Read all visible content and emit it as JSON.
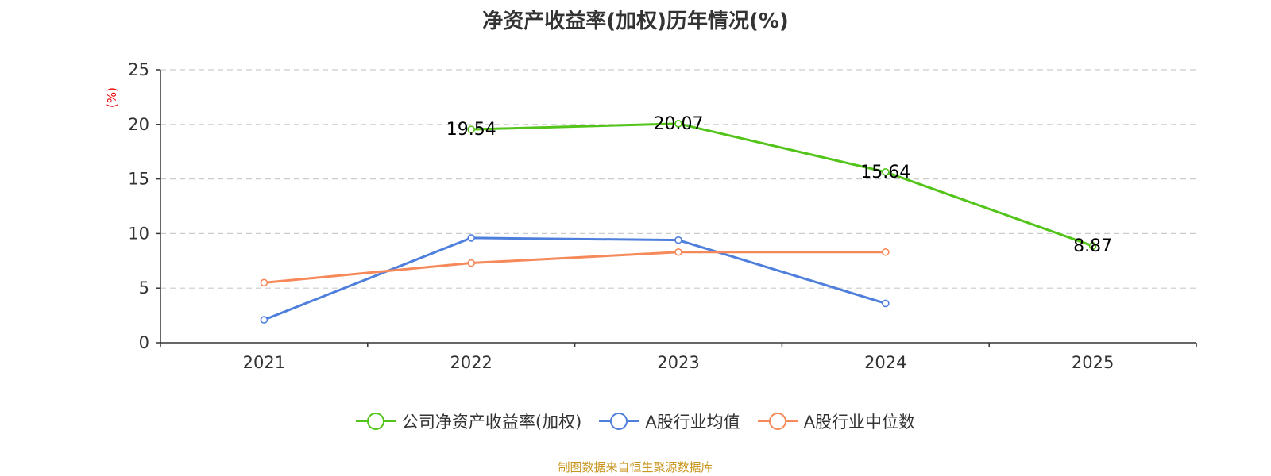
{
  "chart_data": {
    "type": "line",
    "title": "净资产收益率(加权)历年情况(%)",
    "ylabel": "(%)",
    "xlabel": "",
    "categories": [
      "2021",
      "2022",
      "2023",
      "2024",
      "2025"
    ],
    "ylim": [
      0,
      25
    ],
    "yticks": [
      0,
      5,
      10,
      15,
      20,
      25
    ],
    "grid": true,
    "legend_position": "bottom-center",
    "series": [
      {
        "name": "公司净资产收益率(加权)",
        "color": "#52c41a",
        "values": [
          null,
          19.54,
          20.07,
          15.64,
          8.87
        ],
        "labels": [
          "",
          "19.54",
          "20.07",
          "15.64",
          "8.87"
        ],
        "show_labels": true
      },
      {
        "name": "A股行业均值",
        "color": "#4f7fdc",
        "values": [
          2.1,
          9.6,
          9.4,
          3.6,
          null
        ],
        "show_labels": false
      },
      {
        "name": "A股行业中位数",
        "color": "#f5895a",
        "values": [
          5.5,
          7.3,
          8.3,
          8.3,
          null
        ],
        "show_labels": false
      }
    ]
  },
  "source": "制图数据来自恒生聚源数据库",
  "colors": {
    "axis": "#333333",
    "grid": "#cccccc",
    "ylabel": "#e60000",
    "source": "#c8961e"
  }
}
